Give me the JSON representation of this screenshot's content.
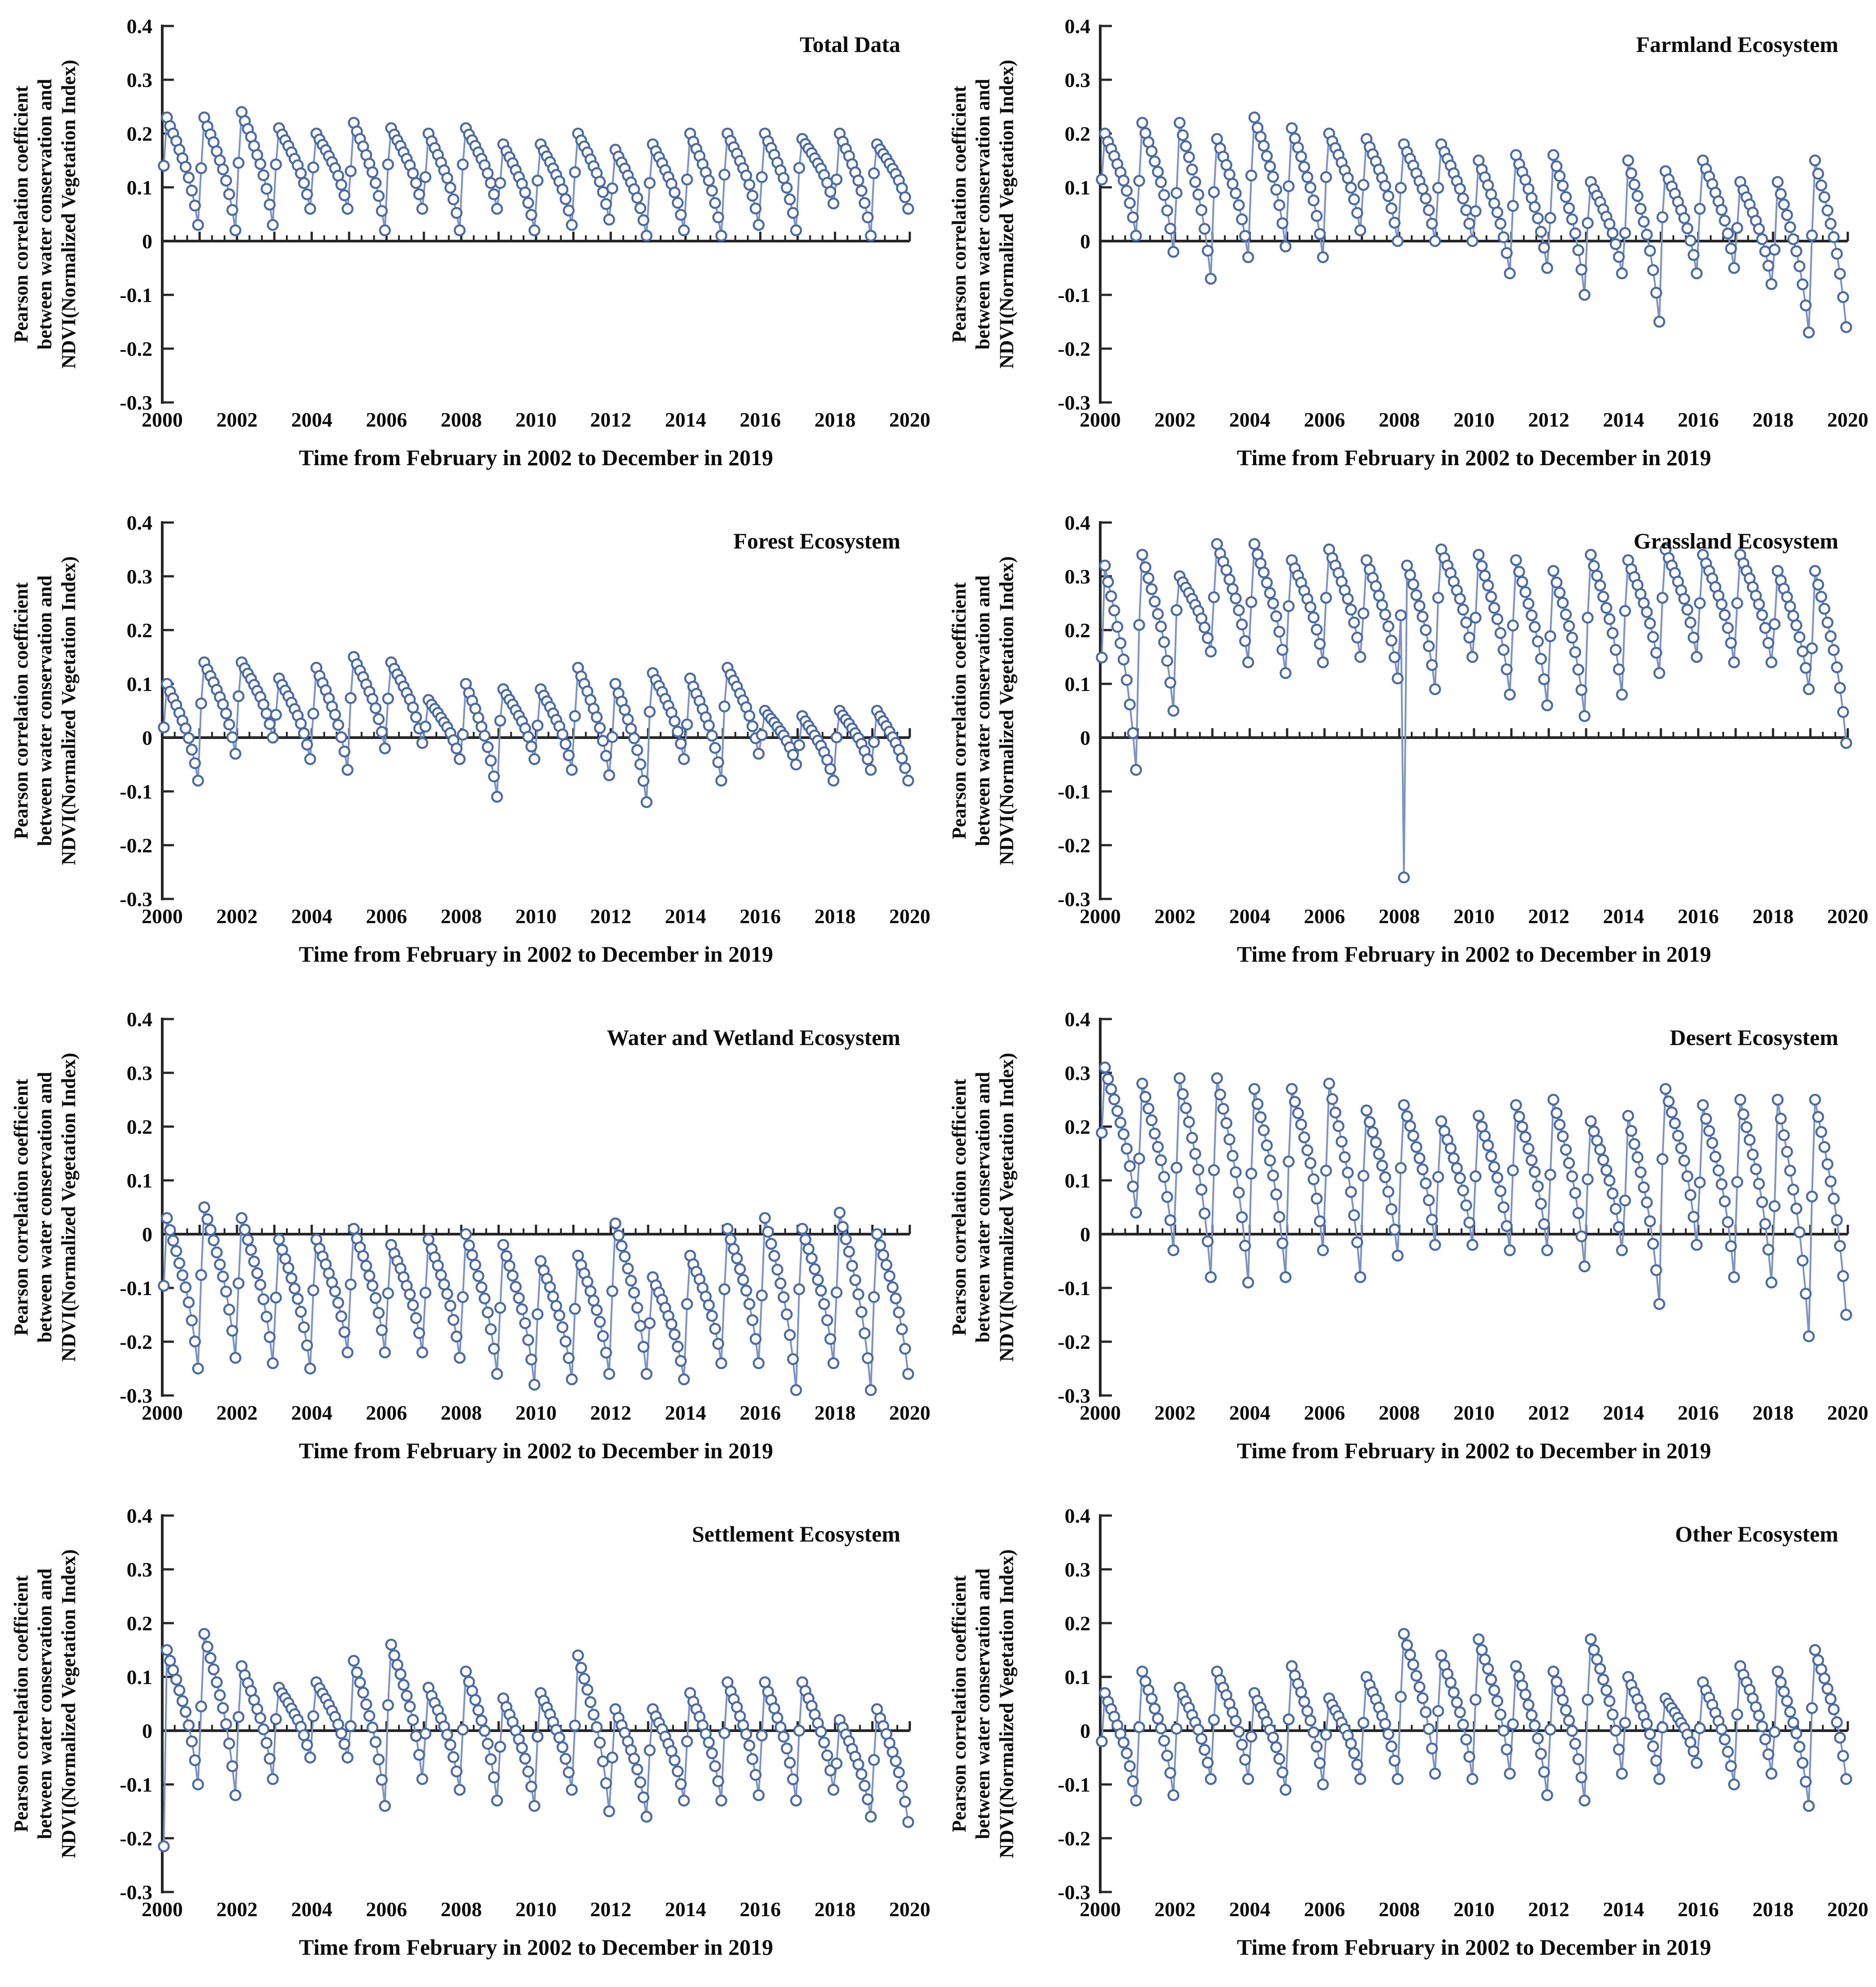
{
  "chart_data": {
    "type": "scatter",
    "figure_description": "Eight panels of monthly Pearson correlation coefficients (open circles connected by lines), one panel per ecosystem type",
    "x_min": 2000,
    "x_max": 2020,
    "y_min": -0.3,
    "y_max": 0.4,
    "grid": "off",
    "legend": "none",
    "points_per_year": 12,
    "years_start": 2000,
    "years_end": 2019,
    "x_tick_years": [
      2000,
      2002,
      2004,
      2006,
      2008,
      2010,
      2012,
      2014,
      2016,
      2018,
      2020
    ],
    "y_tick_values": [
      0.4,
      0.3,
      0.2,
      0.1,
      0,
      -0.1,
      -0.2,
      -0.3
    ],
    "y_tick_labels": [
      "0.4",
      "0.3",
      "0.2",
      "0.1",
      "0",
      "-0.1",
      "-0.2",
      "-0.3"
    ],
    "xlabel": "Time from February in 2002 to December in 2019",
    "ylabel_lines": [
      "Pearson correlation coefficient",
      "between water conservation and",
      "NDVI(Normalized Vegetation Index)"
    ],
    "panels": [
      {
        "title": "Total Data",
        "slug": "total-data",
        "year_max": [
          0.23,
          0.23,
          0.24,
          0.21,
          0.2,
          0.22,
          0.21,
          0.2,
          0.21,
          0.18,
          0.18,
          0.2,
          0.17,
          0.18,
          0.2,
          0.2,
          0.2,
          0.19,
          0.2,
          0.18
        ],
        "year_min": [
          0.03,
          0.02,
          0.03,
          0.06,
          0.06,
          0.02,
          0.06,
          0.02,
          0.06,
          0.02,
          0.03,
          0.04,
          0.01,
          0.02,
          0.01,
          0.03,
          0.02,
          0.07,
          0.01,
          0.06
        ],
        "outliers": []
      },
      {
        "title": "Farmland Ecosystem",
        "slug": "farmland-ecosystem",
        "year_max": [
          0.2,
          0.22,
          0.22,
          0.19,
          0.23,
          0.21,
          0.2,
          0.19,
          0.18,
          0.18,
          0.15,
          0.16,
          0.16,
          0.11,
          0.15,
          0.13,
          0.15,
          0.11,
          0.11,
          0.15
        ],
        "year_min": [
          0.01,
          -0.02,
          -0.07,
          -0.03,
          -0.01,
          -0.03,
          0.02,
          0.0,
          0.0,
          0.0,
          -0.06,
          -0.05,
          -0.1,
          -0.06,
          -0.15,
          -0.06,
          -0.05,
          -0.08,
          -0.17,
          -0.16
        ],
        "outliers": []
      },
      {
        "title": "Forest Ecosystem",
        "slug": "forest-ecosystem",
        "year_max": [
          0.1,
          0.14,
          0.14,
          0.11,
          0.13,
          0.15,
          0.14,
          0.07,
          0.1,
          0.09,
          0.09,
          0.13,
          0.1,
          0.12,
          0.11,
          0.13,
          0.05,
          0.04,
          0.05,
          0.05
        ],
        "year_min": [
          -0.08,
          -0.03,
          0.0,
          -0.04,
          -0.06,
          -0.02,
          -0.01,
          -0.04,
          -0.11,
          -0.04,
          -0.06,
          -0.07,
          -0.12,
          -0.04,
          -0.08,
          -0.03,
          -0.05,
          -0.08,
          -0.06,
          -0.08
        ],
        "outliers": []
      },
      {
        "title": "Grassland Ecosystem",
        "slug": "grassland-ecosystem",
        "year_max": [
          0.32,
          0.34,
          0.3,
          0.36,
          0.36,
          0.33,
          0.35,
          0.33,
          0.34,
          0.35,
          0.34,
          0.33,
          0.31,
          0.34,
          0.33,
          0.35,
          0.34,
          0.34,
          0.31,
          0.31
        ],
        "year_min": [
          -0.06,
          0.05,
          0.16,
          0.14,
          0.12,
          0.14,
          0.15,
          0.11,
          0.09,
          0.15,
          0.08,
          0.06,
          0.04,
          0.08,
          0.12,
          0.15,
          0.14,
          0.14,
          0.09,
          -0.01
        ],
        "outliers": [
          {
            "year": 2008,
            "month_index": 1,
            "value": -0.26
          }
        ]
      },
      {
        "title": "Water and Wetland Ecosystem",
        "slug": "water-and-wetland-ecosystem",
        "year_max": [
          0.03,
          0.05,
          0.03,
          -0.01,
          -0.01,
          0.01,
          -0.02,
          -0.01,
          0.0,
          -0.02,
          -0.05,
          -0.04,
          0.02,
          -0.08,
          -0.04,
          0.01,
          0.03,
          0.01,
          0.04,
          0.0
        ],
        "year_min": [
          -0.25,
          -0.23,
          -0.24,
          -0.25,
          -0.22,
          -0.22,
          -0.22,
          -0.23,
          -0.26,
          -0.28,
          -0.27,
          -0.26,
          -0.26,
          -0.27,
          -0.24,
          -0.24,
          -0.29,
          -0.24,
          -0.29,
          -0.26
        ],
        "outliers": []
      },
      {
        "title": "Desert Ecosystem",
        "slug": "desert-ecosystem",
        "year_max": [
          0.31,
          0.28,
          0.29,
          0.29,
          0.27,
          0.27,
          0.28,
          0.23,
          0.24,
          0.21,
          0.22,
          0.24,
          0.25,
          0.21,
          0.22,
          0.27,
          0.24,
          0.25,
          0.25,
          0.25
        ],
        "year_min": [
          0.04,
          -0.03,
          -0.08,
          -0.09,
          -0.08,
          -0.03,
          -0.08,
          -0.04,
          -0.02,
          -0.02,
          -0.03,
          -0.03,
          -0.06,
          -0.03,
          -0.13,
          -0.02,
          -0.08,
          -0.09,
          -0.19,
          -0.15
        ],
        "outliers": []
      },
      {
        "title": "Settlement Ecosystem",
        "slug": "settlement-ecosystem",
        "year_max": [
          0.15,
          0.18,
          0.12,
          0.08,
          0.09,
          0.13,
          0.16,
          0.08,
          0.11,
          0.06,
          0.07,
          0.14,
          0.04,
          0.04,
          0.07,
          0.09,
          0.09,
          0.09,
          0.02,
          0.04
        ],
        "year_min": [
          -0.1,
          -0.12,
          -0.09,
          -0.05,
          -0.05,
          -0.14,
          -0.09,
          -0.11,
          -0.13,
          -0.14,
          -0.11,
          -0.15,
          -0.16,
          -0.13,
          -0.13,
          -0.12,
          -0.13,
          -0.11,
          -0.16,
          -0.17
        ],
        "outliers": [
          {
            "year": 2000,
            "month_index": 0,
            "value": -0.215
          }
        ]
      },
      {
        "title": "Other Ecosystem",
        "slug": "other-ecosystem",
        "year_max": [
          0.07,
          0.11,
          0.08,
          0.11,
          0.07,
          0.12,
          0.06,
          0.1,
          0.18,
          0.14,
          0.17,
          0.12,
          0.11,
          0.17,
          0.1,
          0.06,
          0.09,
          0.12,
          0.11,
          0.15
        ],
        "year_min": [
          -0.13,
          -0.12,
          -0.09,
          -0.09,
          -0.11,
          -0.1,
          -0.09,
          -0.09,
          -0.08,
          -0.09,
          -0.08,
          -0.12,
          -0.13,
          -0.08,
          -0.09,
          -0.06,
          -0.1,
          -0.08,
          -0.14,
          -0.09
        ],
        "outliers": []
      }
    ]
  },
  "style": {
    "marker_color": "#4a6ba9",
    "marker_fill": "#ffffff",
    "line_color": "#7b93c9",
    "axis_color": "#262626",
    "text_color": "#0d0d0d",
    "background": "#ffffff"
  }
}
